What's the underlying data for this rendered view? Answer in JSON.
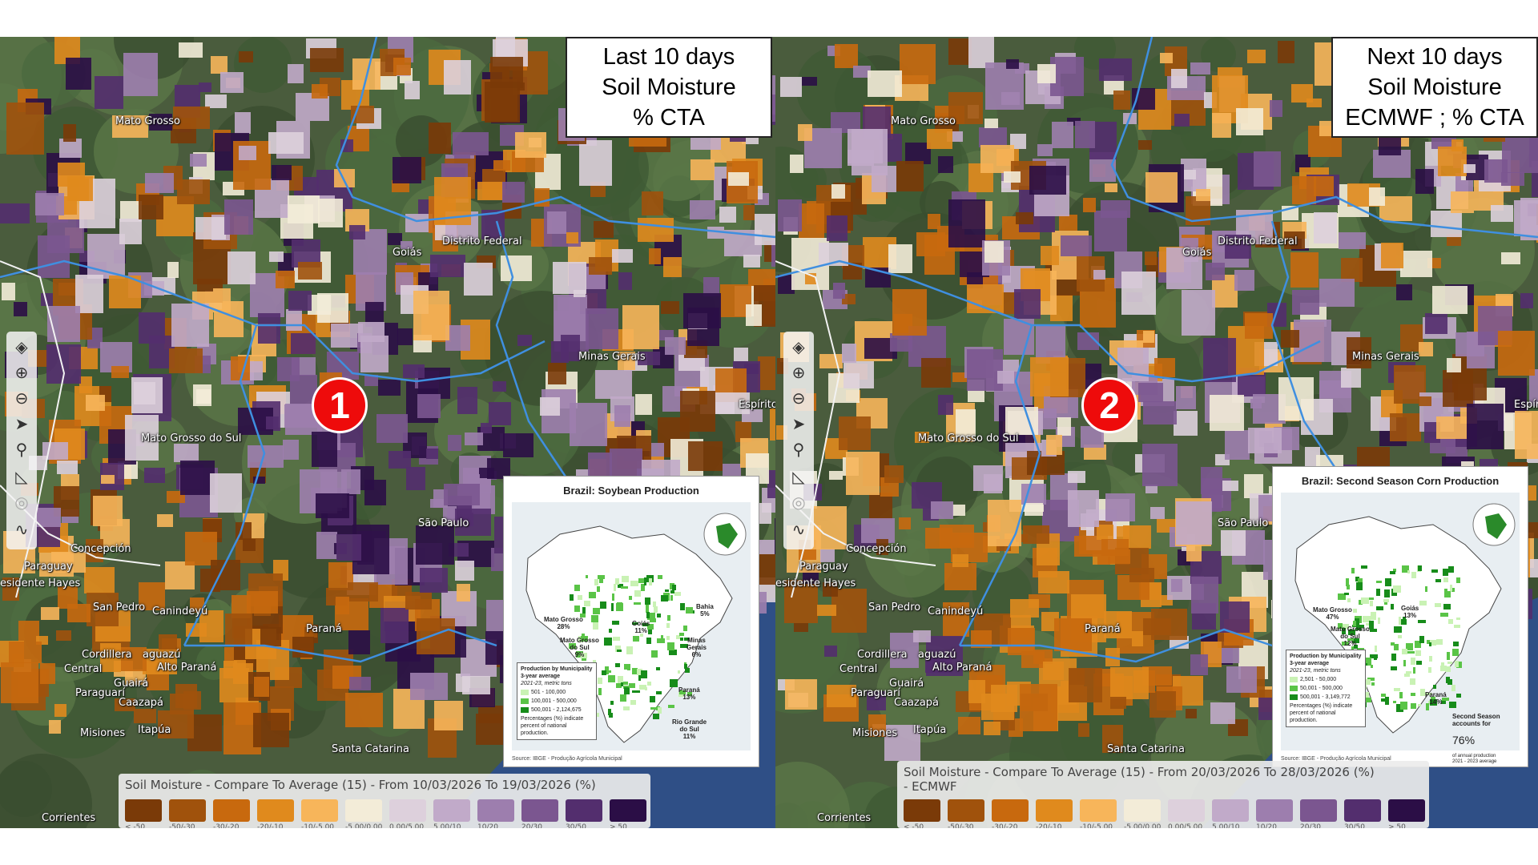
{
  "left": {
    "title_lines": [
      "Last 10 days",
      "Soil Moisture",
      "% CTA"
    ],
    "badge": "1",
    "legend_title": "Soil Moisture - Compare To Average (15) - From 10/03/2026 To 19/03/2026 (%)",
    "inset": {
      "title": "Brazil: Soybean Production",
      "states": [
        {
          "name": "Mato Grosso\n28%"
        },
        {
          "name": "Goiás\n11%"
        },
        {
          "name": "Bahia\n5%"
        },
        {
          "name": "Mato Grosso\ndo Sul\n9%"
        },
        {
          "name": "Minas\nGerais\n6%"
        },
        {
          "name": "Paraná\n13%"
        },
        {
          "name": "Rio Grande\ndo Sul\n11%"
        }
      ],
      "legend_title": "Production by Municipality\n3-year average",
      "legend_sub": "2021-23, metric tons",
      "legend_items": [
        "501 - 100,000",
        "100,001 - 500,000",
        "500,001 - 2,124,675"
      ],
      "legend_note": "Percentages (%) indicate percent of national production.",
      "source": "Source: IBGE - Produção Agrícola Municipal"
    }
  },
  "right": {
    "title_lines": [
      "Next 10 days",
      "Soil Moisture",
      "ECMWF ; % CTA"
    ],
    "badge": "2",
    "legend_title": "Soil Moisture - Compare To Average (15) - From 20/03/2026 To 28/03/2026 (%) - ECMWF",
    "inset": {
      "title": "Brazil: Second Season Corn Production",
      "states": [
        {
          "name": "Mato Grosso\n47%"
        },
        {
          "name": "Goiás\n13%"
        },
        {
          "name": "Mato Grosso\ndo Sul\n12%"
        },
        {
          "name": "Paraná\n14%"
        }
      ],
      "legend_title": "Production by Municipality\n3-year average",
      "legend_sub": "2021-23, metric tons",
      "legend_items": [
        "2,501 - 50,000",
        "50,001 - 500,000",
        "500,001 - 3,149,772"
      ],
      "legend_note": "Percentages (%) indicate percent of national production.",
      "second_season": "Second Season\naccounts for",
      "second_season_pct": "76%",
      "second_season_tail": "of annual production\n2021 - 2023 average",
      "source": "Source: IBGE - Produção Agrícola Municipal"
    }
  },
  "map_labels": [
    "Mato Grosso",
    "Distrito Federal",
    "Goiás",
    "Minas Gerais",
    "Mato Grosso do Sul",
    "São Paulo",
    "Concepción",
    "Paraguay",
    "esidente Hayes",
    "San Pedro",
    "Canindeyú",
    "Paraná",
    "Cordillera",
    "aguazú",
    "Alto Paraná",
    "Central",
    "Guairá",
    "Paraguarí",
    "Caazapá",
    "Misiones",
    "Itapúa",
    "Santa Catarina",
    "Corrientes",
    "Espírito"
  ],
  "legend_scale": {
    "labels": [
      "< -50",
      "-50/-30",
      "-30/-20",
      "-20/-10",
      "-10/-5.00",
      "-5.00/0.00",
      "0.00/5.00",
      "5.00/10",
      "10/20",
      "20/30",
      "30/50",
      "> 50"
    ],
    "colors": [
      "#7a3a08",
      "#a0520c",
      "#c8690e",
      "#e08a1d",
      "#f7b55a",
      "#f3ecd8",
      "#ddd0dc",
      "#c1aac9",
      "#9d7eae",
      "#7b5690",
      "#532e6e",
      "#2b0e46"
    ]
  },
  "inset_colors": {
    "low": "#c9f2b4",
    "mid": "#5ac447",
    "high": "#178c1a"
  },
  "toolbar_icons": [
    "layers-icon",
    "zoom-in-icon",
    "zoom-out-icon",
    "navigate-icon",
    "search-icon",
    "measure-icon",
    "locate-icon",
    "draw-icon"
  ]
}
